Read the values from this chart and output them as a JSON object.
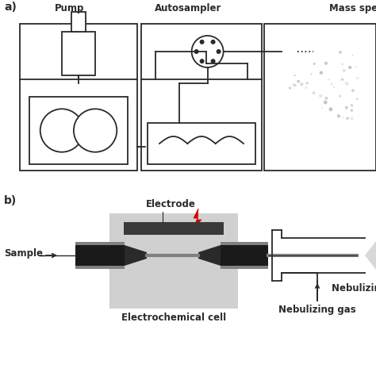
{
  "title_a": "a)",
  "title_b": "b)",
  "label_pump": "Pump",
  "label_autosampler": "Autosampler",
  "label_mass_spec": "Mass spectrometer",
  "label_electrode": "Electrode",
  "label_sample": "Sample",
  "label_echem_cell": "Electrochemical cell",
  "label_neb_gas": "Nebulizing gas",
  "bg_color": "#ffffff",
  "line_color": "#2a2a2a",
  "gray_light": "#c0c0c0",
  "gray_medium": "#808080",
  "gray_dark": "#404040",
  "red_lightning": "#cc0000",
  "dot_color": "#b0b0b0",
  "cell_gray": "#d0d0d0"
}
